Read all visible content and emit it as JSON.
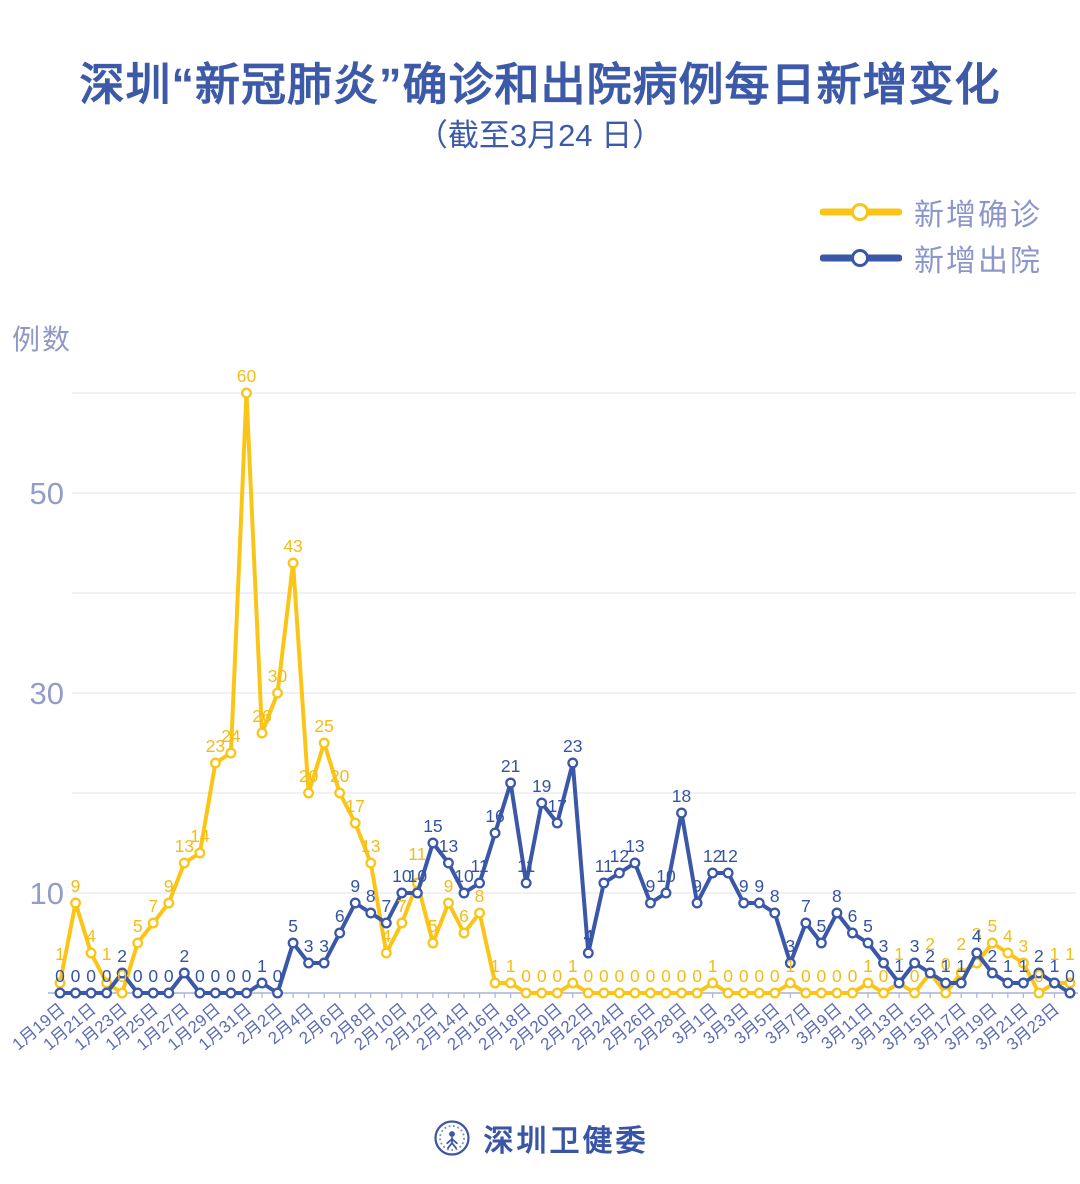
{
  "title": "深圳“新冠肺炎”确诊和出院病例每日新增变化",
  "subtitle": "（截至3月24 日）",
  "y_axis_unit": "例数",
  "legend": [
    {
      "label": "新增确诊",
      "color": "#FBC518"
    },
    {
      "label": "新增出院",
      "color": "#3A57A8"
    }
  ],
  "footer": {
    "org": "深圳卫健委"
  },
  "chart_data": {
    "type": "line",
    "title": "深圳“新冠肺炎”确诊和出院病例每日新增变化",
    "subtitle": "（截至3月24 日）",
    "ylabel": "例数",
    "ylim": [
      0,
      60
    ],
    "gridlines": [
      10,
      20,
      30,
      40,
      50,
      60
    ],
    "yticks_labeled": [
      10,
      30,
      50
    ],
    "grid": "horizontal",
    "legend_position": "top-right",
    "x_label_step": 2,
    "x": [
      "1月19日",
      "1月20日",
      "1月21日",
      "1月22日",
      "1月23日",
      "1月24日",
      "1月25日",
      "1月26日",
      "1月27日",
      "1月28日",
      "1月29日",
      "1月30日",
      "1月31日",
      "2月1日",
      "2月2日",
      "2月3日",
      "2月4日",
      "2月5日",
      "2月6日",
      "2月7日",
      "2月8日",
      "2月9日",
      "2月10日",
      "2月11日",
      "2月12日",
      "2月13日",
      "2月14日",
      "2月15日",
      "2月16日",
      "2月17日",
      "2月18日",
      "2月19日",
      "2月20日",
      "2月21日",
      "2月22日",
      "2月23日",
      "2月24日",
      "2月25日",
      "2月26日",
      "2月27日",
      "2月28日",
      "2月29日",
      "3月1日",
      "3月2日",
      "3月3日",
      "3月4日",
      "3月5日",
      "3月6日",
      "3月7日",
      "3月8日",
      "3月9日",
      "3月10日",
      "3月11日",
      "3月12日",
      "3月13日",
      "3月14日",
      "3月15日",
      "3月16日",
      "3月17日",
      "3月18日",
      "3月19日",
      "3月20日",
      "3月21日",
      "3月22日",
      "3月23日",
      "3月24日"
    ],
    "series": [
      {
        "name": "新增确诊",
        "color": "#FBC518",
        "label_color": "#F2BD18",
        "values": [
          1,
          9,
          4,
          1,
          0,
          5,
          7,
          9,
          13,
          14,
          23,
          24,
          60,
          26,
          30,
          43,
          20,
          25,
          20,
          17,
          13,
          4,
          7,
          11,
          5,
          9,
          6,
          8,
          1,
          1,
          0,
          0,
          0,
          1,
          0,
          0,
          0,
          0,
          0,
          0,
          0,
          0,
          1,
          0,
          0,
          0,
          0,
          1,
          0,
          0,
          0,
          0,
          1,
          0,
          1,
          0,
          2,
          0,
          2,
          3,
          5,
          4,
          3,
          0,
          1,
          1
        ]
      },
      {
        "name": "新增出院",
        "color": "#3A57A8",
        "label_color": "#3454A3",
        "values": [
          0,
          0,
          0,
          0,
          2,
          0,
          0,
          0,
          2,
          0,
          0,
          0,
          0,
          1,
          0,
          5,
          3,
          3,
          6,
          9,
          8,
          7,
          10,
          10,
          15,
          13,
          10,
          11,
          16,
          21,
          11,
          19,
          17,
          23,
          4,
          11,
          12,
          13,
          9,
          10,
          18,
          9,
          12,
          12,
          9,
          9,
          8,
          3,
          7,
          5,
          8,
          6,
          5,
          3,
          1,
          3,
          2,
          1,
          1,
          4,
          2,
          1,
          1,
          2,
          1,
          0
        ]
      }
    ]
  }
}
